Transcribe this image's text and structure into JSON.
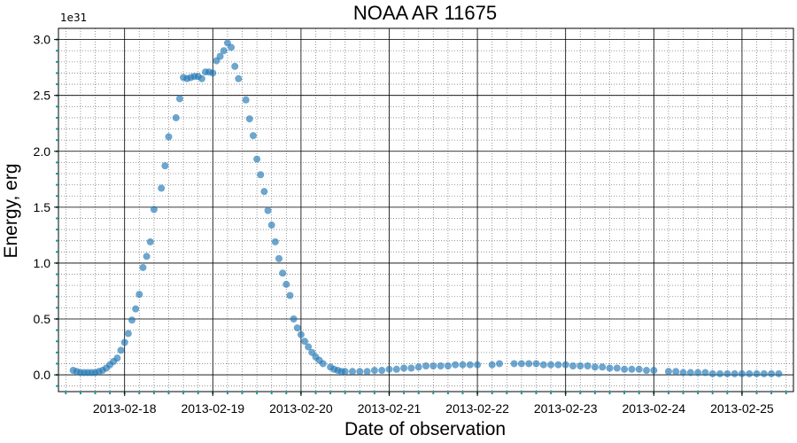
{
  "chart_data": {
    "type": "scatter",
    "title": "NOAA AR 11675",
    "xlabel": "Date of observation",
    "ylabel": "Energy, erg",
    "y_offset_label": "1e31",
    "y_multiplier": 1e+31,
    "xlim": [
      "2013-02-17T06:00",
      "2013-02-25T14:00"
    ],
    "ylim": [
      -0.15,
      3.1
    ],
    "x_ticks": [
      "2013-02-18",
      "2013-02-19",
      "2013-02-20",
      "2013-02-21",
      "2013-02-22",
      "2013-02-23",
      "2013-02-24",
      "2013-02-25"
    ],
    "y_ticks": [
      "0.0",
      "0.5",
      "1.0",
      "1.5",
      "2.0",
      "2.5",
      "3.0"
    ],
    "grid": true,
    "colors": {
      "points": "#1f77b4",
      "major_grid": "#000000",
      "minor_grid": "#808080",
      "minor_ticks": "#1a9a9a"
    },
    "series": [
      {
        "x": [
          "2013-02-17T10:00",
          "2013-02-17T11:00",
          "2013-02-17T12:00",
          "2013-02-17T13:00",
          "2013-02-17T14:00",
          "2013-02-17T15:00",
          "2013-02-17T16:00",
          "2013-02-17T17:00",
          "2013-02-17T18:00",
          "2013-02-17T19:00",
          "2013-02-17T20:00",
          "2013-02-17T21:00",
          "2013-02-17T22:00",
          "2013-02-17T23:00",
          "2013-02-18T00:00",
          "2013-02-18T01:00",
          "2013-02-18T02:00",
          "2013-02-18T03:00",
          "2013-02-18T04:00",
          "2013-02-18T05:00",
          "2013-02-18T06:00",
          "2013-02-18T07:00",
          "2013-02-18T08:00",
          "2013-02-18T10:00",
          "2013-02-18T11:00",
          "2013-02-18T12:00",
          "2013-02-18T14:00",
          "2013-02-18T15:00",
          "2013-02-18T16:00",
          "2013-02-18T17:00",
          "2013-02-18T18:00",
          "2013-02-18T19:00",
          "2013-02-18T20:00",
          "2013-02-18T21:00",
          "2013-02-18T22:00",
          "2013-02-18T23:00",
          "2013-02-19T00:00",
          "2013-02-19T01:00",
          "2013-02-19T02:00",
          "2013-02-19T03:00",
          "2013-02-19T04:00",
          "2013-02-19T05:00",
          "2013-02-19T06:00",
          "2013-02-19T07:00",
          "2013-02-19T09:00",
          "2013-02-19T10:00",
          "2013-02-19T11:00",
          "2013-02-19T12:00",
          "2013-02-19T13:00",
          "2013-02-19T14:00",
          "2013-02-19T15:00",
          "2013-02-19T16:00",
          "2013-02-19T17:00",
          "2013-02-19T18:00",
          "2013-02-19T19:00",
          "2013-02-19T20:00",
          "2013-02-19T21:00",
          "2013-02-19T22:00",
          "2013-02-19T23:00",
          "2013-02-20T00:00",
          "2013-02-20T01:00",
          "2013-02-20T02:00",
          "2013-02-20T03:00",
          "2013-02-20T04:00",
          "2013-02-20T05:00",
          "2013-02-20T06:00",
          "2013-02-20T08:00",
          "2013-02-20T09:00",
          "2013-02-20T10:00",
          "2013-02-20T11:00",
          "2013-02-20T12:00",
          "2013-02-20T14:00",
          "2013-02-20T16:00",
          "2013-02-20T18:00",
          "2013-02-20T20:00",
          "2013-02-20T22:00",
          "2013-02-21T00:00",
          "2013-02-21T02:00",
          "2013-02-21T04:00",
          "2013-02-21T06:00",
          "2013-02-21T08:00",
          "2013-02-21T10:00",
          "2013-02-21T12:00",
          "2013-02-21T14:00",
          "2013-02-21T16:00",
          "2013-02-21T18:00",
          "2013-02-21T20:00",
          "2013-02-21T22:00",
          "2013-02-22T00:00",
          "2013-02-22T04:00",
          "2013-02-22T06:00",
          "2013-02-22T10:00",
          "2013-02-22T12:00",
          "2013-02-22T14:00",
          "2013-02-22T16:00",
          "2013-02-22T18:00",
          "2013-02-22T20:00",
          "2013-02-22T22:00",
          "2013-02-23T00:00",
          "2013-02-23T02:00",
          "2013-02-23T04:00",
          "2013-02-23T06:00",
          "2013-02-23T08:00",
          "2013-02-23T10:00",
          "2013-02-23T12:00",
          "2013-02-23T14:00",
          "2013-02-23T16:00",
          "2013-02-23T18:00",
          "2013-02-23T20:00",
          "2013-02-23T22:00",
          "2013-02-24T00:00",
          "2013-02-24T04:00",
          "2013-02-24T06:00",
          "2013-02-24T08:00",
          "2013-02-24T10:00",
          "2013-02-24T12:00",
          "2013-02-24T14:00",
          "2013-02-24T16:00",
          "2013-02-24T18:00",
          "2013-02-24T20:00",
          "2013-02-24T22:00",
          "2013-02-25T00:00",
          "2013-02-25T02:00",
          "2013-02-25T04:00",
          "2013-02-25T06:00",
          "2013-02-25T08:00",
          "2013-02-25T10:00"
        ],
        "y": [
          0.04,
          0.03,
          0.02,
          0.02,
          0.02,
          0.02,
          0.02,
          0.03,
          0.04,
          0.06,
          0.09,
          0.12,
          0.15,
          0.22,
          0.29,
          0.37,
          0.49,
          0.59,
          0.72,
          0.96,
          1.06,
          1.19,
          1.48,
          1.67,
          1.87,
          2.13,
          2.3,
          2.47,
          2.66,
          2.65,
          2.66,
          2.67,
          2.67,
          2.65,
          2.71,
          2.71,
          2.7,
          2.81,
          2.85,
          2.9,
          2.97,
          2.93,
          2.76,
          2.65,
          2.46,
          2.29,
          2.14,
          1.93,
          1.79,
          1.64,
          1.47,
          1.34,
          1.19,
          1.04,
          0.91,
          0.81,
          0.71,
          0.5,
          0.42,
          0.36,
          0.3,
          0.25,
          0.2,
          0.16,
          0.13,
          0.1,
          0.07,
          0.05,
          0.04,
          0.03,
          0.03,
          0.03,
          0.03,
          0.03,
          0.04,
          0.04,
          0.05,
          0.05,
          0.06,
          0.06,
          0.07,
          0.08,
          0.08,
          0.08,
          0.08,
          0.09,
          0.09,
          0.09,
          0.09,
          0.09,
          0.1,
          0.1,
          0.1,
          0.1,
          0.1,
          0.09,
          0.09,
          0.09,
          0.09,
          0.08,
          0.08,
          0.08,
          0.07,
          0.07,
          0.06,
          0.06,
          0.05,
          0.05,
          0.05,
          0.04,
          0.04,
          0.03,
          0.03,
          0.02,
          0.02,
          0.02,
          0.02,
          0.01,
          0.01,
          0.01,
          0.01,
          0.01,
          0.01,
          0.01,
          0.01,
          0.01,
          0.01
        ]
      }
    ]
  }
}
